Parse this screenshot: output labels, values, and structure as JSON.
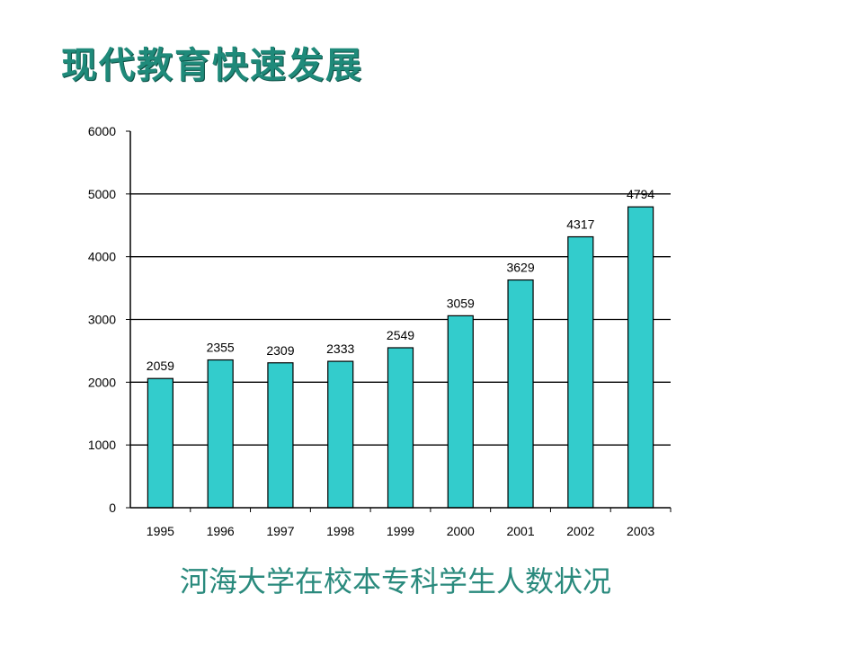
{
  "slide": {
    "title": "现代教育快速发展"
  },
  "chart_data": {
    "type": "bar",
    "title": "",
    "xlabel": "",
    "ylabel": "",
    "categories": [
      "1995",
      "1996",
      "1997",
      "1998",
      "1999",
      "2000",
      "2001",
      "2002",
      "2003"
    ],
    "values": [
      2059,
      2355,
      2309,
      2333,
      2549,
      3059,
      3629,
      4317,
      4794
    ],
    "value_labels": [
      "2059",
      "2355",
      "2309",
      "2333",
      "2549",
      "3059",
      "3629",
      "4317",
      "4794"
    ],
    "ylim": [
      0,
      6000
    ],
    "yticks": [
      0,
      1000,
      2000,
      3000,
      4000,
      5000,
      6000
    ],
    "ytick_labels": [
      "0",
      "1000",
      "2000",
      "3000",
      "4000",
      "5000",
      "6000"
    ],
    "grid": true,
    "legend": "none",
    "bar_color": "#33cccc"
  },
  "caption": "河海大学在校本专科学生人数状况"
}
